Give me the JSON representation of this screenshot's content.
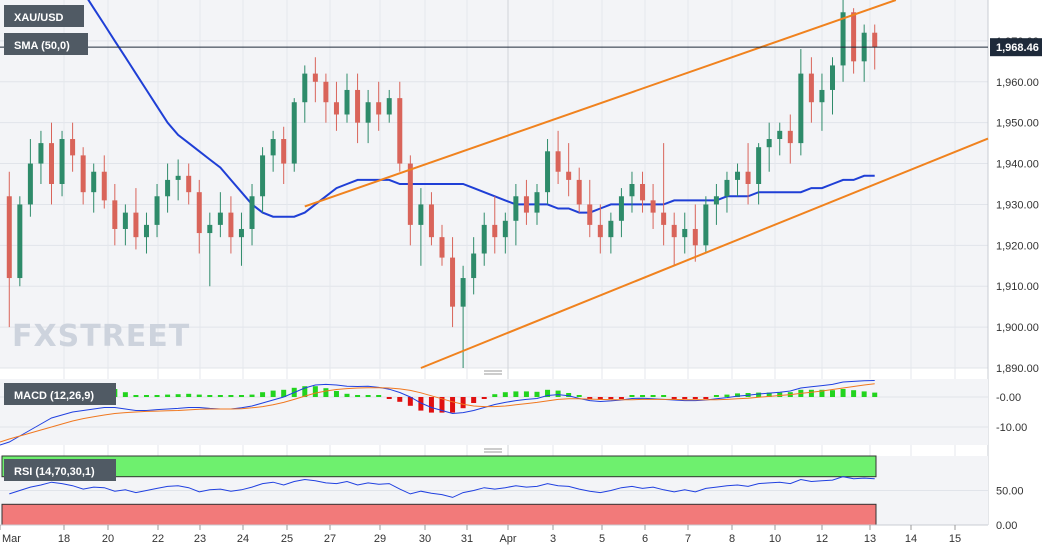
{
  "chart_data": [
    {
      "type": "candlestick",
      "symbol_label": "XAU/USD",
      "indicator_label": "SMA (50,0)",
      "last_price": 1968.46,
      "last_price_text": "1,968.46",
      "ylim": [
        1890,
        1980
      ],
      "yticks": [
        "1,890.00",
        "1,900.00",
        "1,910.00",
        "1,920.00",
        "1,930.00",
        "1,940.00",
        "1,950.00",
        "1,960.00",
        "1,970.00"
      ],
      "x_labels": [
        "Mar",
        "18",
        "20",
        "22",
        "23",
        "24",
        "25",
        "27",
        "29",
        "30",
        "31",
        "Apr",
        "3",
        "5",
        "6",
        "7",
        "8",
        "10",
        "12",
        "13",
        "14",
        "15"
      ],
      "watermark": "FXSTREET",
      "candles": [
        [
          1932,
          1938,
          1900,
          1912
        ],
        [
          1912,
          1932,
          1910,
          1930
        ],
        [
          1930,
          1946,
          1927,
          1940
        ],
        [
          1940,
          1948,
          1935,
          1945
        ],
        [
          1945,
          1950,
          1930,
          1935
        ],
        [
          1935,
          1948,
          1932,
          1946
        ],
        [
          1946,
          1950,
          1938,
          1942
        ],
        [
          1942,
          1944,
          1930,
          1933
        ],
        [
          1933,
          1940,
          1928,
          1938
        ],
        [
          1938,
          1942,
          1929,
          1931
        ],
        [
          1931,
          1935,
          1920,
          1924
        ],
        [
          1924,
          1930,
          1920,
          1928
        ],
        [
          1928,
          1934,
          1919,
          1922
        ],
        [
          1922,
          1928,
          1918,
          1925
        ],
        [
          1925,
          1935,
          1922,
          1932
        ],
        [
          1932,
          1940,
          1928,
          1936
        ],
        [
          1936,
          1941,
          1931,
          1937
        ],
        [
          1937,
          1940,
          1930,
          1933
        ],
        [
          1933,
          1936,
          1918,
          1923
        ],
        [
          1923,
          1928,
          1910,
          1925
        ],
        [
          1925,
          1933,
          1922,
          1928
        ],
        [
          1928,
          1932,
          1918,
          1922
        ],
        [
          1922,
          1928,
          1915,
          1924
        ],
        [
          1924,
          1935,
          1920,
          1932
        ],
        [
          1932,
          1944,
          1928,
          1942
        ],
        [
          1942,
          1948,
          1938,
          1946
        ],
        [
          1946,
          1949,
          1935,
          1940
        ],
        [
          1940,
          1956,
          1938,
          1955
        ],
        [
          1955,
          1964,
          1950,
          1962
        ],
        [
          1962,
          1966,
          1955,
          1960
        ],
        [
          1960,
          1962,
          1950,
          1955
        ],
        [
          1955,
          1960,
          1948,
          1952
        ],
        [
          1952,
          1962,
          1950,
          1958
        ],
        [
          1958,
          1962,
          1945,
          1950
        ],
        [
          1950,
          1958,
          1945,
          1955
        ],
        [
          1955,
          1960,
          1948,
          1952
        ],
        [
          1952,
          1958,
          1950,
          1956
        ],
        [
          1956,
          1960,
          1938,
          1940
        ],
        [
          1940,
          1942,
          1920,
          1925
        ],
        [
          1925,
          1934,
          1915,
          1930
        ],
        [
          1930,
          1933,
          1920,
          1922
        ],
        [
          1922,
          1925,
          1915,
          1917
        ],
        [
          1917,
          1922,
          1900,
          1905
        ],
        [
          1905,
          1915,
          1890,
          1912
        ],
        [
          1912,
          1922,
          1908,
          1918
        ],
        [
          1918,
          1928,
          1915,
          1925
        ],
        [
          1925,
          1932,
          1918,
          1922
        ],
        [
          1922,
          1928,
          1918,
          1926
        ],
        [
          1926,
          1935,
          1920,
          1932
        ],
        [
          1932,
          1936,
          1925,
          1928
        ],
        [
          1928,
          1935,
          1925,
          1933
        ],
        [
          1933,
          1946,
          1930,
          1943
        ],
        [
          1943,
          1948,
          1935,
          1938
        ],
        [
          1938,
          1945,
          1932,
          1936
        ],
        [
          1936,
          1939,
          1928,
          1930
        ],
        [
          1930,
          1936,
          1922,
          1925
        ],
        [
          1925,
          1930,
          1918,
          1922
        ],
        [
          1922,
          1928,
          1918,
          1926
        ],
        [
          1926,
          1934,
          1922,
          1932
        ],
        [
          1932,
          1938,
          1928,
          1935
        ],
        [
          1935,
          1938,
          1928,
          1931
        ],
        [
          1931,
          1935,
          1924,
          1928
        ],
        [
          1928,
          1945,
          1920,
          1925
        ],
        [
          1925,
          1928,
          1915,
          1922
        ],
        [
          1922,
          1928,
          1918,
          1924
        ],
        [
          1924,
          1930,
          1916,
          1920
        ],
        [
          1920,
          1932,
          1918,
          1930
        ],
        [
          1930,
          1935,
          1925,
          1932
        ],
        [
          1932,
          1938,
          1928,
          1936
        ],
        [
          1936,
          1940,
          1932,
          1938
        ],
        [
          1938,
          1945,
          1930,
          1935
        ],
        [
          1935,
          1945,
          1930,
          1944
        ],
        [
          1944,
          1950,
          1938,
          1946
        ],
        [
          1946,
          1950,
          1942,
          1948
        ],
        [
          1948,
          1952,
          1940,
          1945
        ],
        [
          1945,
          1968,
          1942,
          1962
        ],
        [
          1962,
          1966,
          1950,
          1955
        ],
        [
          1955,
          1962,
          1948,
          1958
        ],
        [
          1958,
          1966,
          1952,
          1964
        ],
        [
          1964,
          1980,
          1960,
          1977
        ],
        [
          1977,
          1978,
          1962,
          1965
        ],
        [
          1965,
          1974,
          1960,
          1972
        ],
        [
          1972,
          1974,
          1963,
          1968.46
        ]
      ],
      "sma50": [
        1988,
        1985,
        1982,
        1978,
        1974,
        1970,
        1966,
        1962,
        1958,
        1954,
        1950,
        1947,
        1945,
        1943,
        1941,
        1939,
        1936,
        1933,
        1930,
        1928,
        1927,
        1927,
        1927,
        1928,
        1930,
        1932,
        1934,
        1935,
        1936,
        1936,
        1936,
        1936,
        1935,
        1935,
        1935,
        1935,
        1935,
        1935,
        1935,
        1934,
        1933,
        1932,
        1931,
        1930,
        1930,
        1930,
        1930,
        1929,
        1929,
        1928,
        1928,
        1929,
        1930,
        1930,
        1930,
        1930,
        1930,
        1930,
        1931,
        1931,
        1931,
        1931,
        1931,
        1932,
        1932,
        1932,
        1933,
        1933,
        1933,
        1933,
        1933,
        1934,
        1934,
        1935,
        1936,
        1936,
        1937,
        1937
      ],
      "channel_upper": [
        {
          "x": 28.5,
          "y": 1929.5
        },
        {
          "x": 84.5,
          "y": 1980
        }
      ],
      "channel_lower": [
        {
          "x": 39.5,
          "y": 1890
        },
        {
          "x": 84.5,
          "y": 1937
        }
      ],
      "macd": {
        "label": "MACD (12,26,9)",
        "ylim": [
          -16,
          6
        ],
        "yticks": [
          "-0.00",
          "-10.00"
        ],
        "macd_line": [
          -15,
          -13,
          -11,
          -9,
          -7,
          -6,
          -5,
          -4.5,
          -4,
          -3.5,
          -3.5,
          -4,
          -4.5,
          -4.5,
          -4.2,
          -4,
          -3.8,
          -3.5,
          -3.5,
          -3.8,
          -4,
          -4,
          -3.6,
          -3,
          -2,
          -1,
          0,
          1.5,
          3,
          4,
          4.2,
          4,
          3.6,
          3.5,
          3.6,
          3.2,
          2.6,
          1.5,
          0,
          -2,
          -3.5,
          -4.5,
          -5.5,
          -5.2,
          -4.5,
          -3.5,
          -2.5,
          -1.8,
          -1.2,
          -0.8,
          -0.5,
          0.5,
          0.8,
          0.4,
          -0.5,
          -1.2,
          -1.5,
          -1.3,
          -1,
          -0.5,
          -0.4,
          -0.6,
          -0.8,
          -1,
          -1.2,
          -1.2,
          -1,
          -0.6,
          -0.2,
          0.3,
          0.6,
          1,
          1.3,
          1.6,
          2,
          3,
          3.4,
          3.8,
          4.2,
          5,
          5.2,
          5.4,
          5.5
        ],
        "signal_line": [
          -14,
          -13,
          -12,
          -11,
          -10,
          -9,
          -8,
          -7.2,
          -6.6,
          -6,
          -5.5,
          -5.2,
          -5,
          -4.8,
          -4.7,
          -4.6,
          -4.5,
          -4.3,
          -4.1,
          -4,
          -4,
          -4,
          -3.9,
          -3.6,
          -3.2,
          -2.6,
          -1.8,
          -0.8,
          0.3,
          1.3,
          2,
          2.5,
          2.8,
          3,
          3.1,
          3.1,
          3,
          2.7,
          2.2,
          1.4,
          0.4,
          -0.6,
          -1.6,
          -2.4,
          -3,
          -3.2,
          -3.2,
          -3,
          -2.6,
          -2.2,
          -1.8,
          -1.3,
          -0.8,
          -0.6,
          -0.6,
          -0.7,
          -0.8,
          -0.9,
          -0.9,
          -0.9,
          -0.8,
          -0.8,
          -0.8,
          -0.8,
          -0.9,
          -0.9,
          -0.9,
          -0.9,
          -0.8,
          -0.6,
          -0.4,
          -0.1,
          0.2,
          0.5,
          0.8,
          1.2,
          1.6,
          2,
          2.5,
          3,
          3.5,
          4,
          4.4
        ],
        "hist_scale_note": ""
      },
      "rsi": {
        "label": "RSI (14,70,30,1)",
        "ylim": [
          0,
          100
        ],
        "upper": 70,
        "lower": 30,
        "yticks": [
          "50.00",
          "0.00"
        ],
        "rsi_line": [
          45,
          50,
          55,
          58,
          62,
          60,
          57,
          52,
          55,
          54,
          49,
          51,
          47,
          50,
          53,
          56,
          57,
          54,
          48,
          51,
          52,
          49,
          51,
          55,
          60,
          62,
          58,
          63,
          66,
          64,
          61,
          60,
          63,
          58,
          61,
          59,
          60,
          52,
          45,
          49,
          46,
          44,
          40,
          47,
          50,
          54,
          52,
          54,
          57,
          55,
          56,
          60,
          57,
          56,
          52,
          49,
          47,
          50,
          54,
          56,
          53,
          55,
          51,
          48,
          51,
          48,
          53,
          55,
          57,
          58,
          56,
          60,
          61,
          62,
          60,
          66,
          63,
          64,
          65,
          70,
          67,
          68,
          67
        ]
      }
    }
  ]
}
